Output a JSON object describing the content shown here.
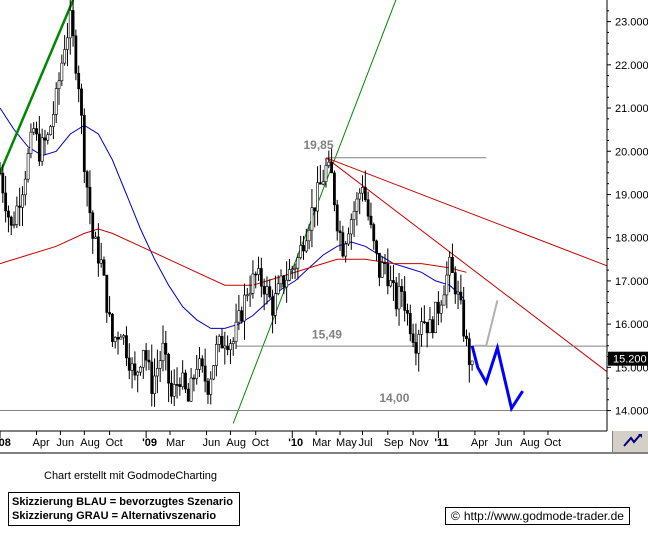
{
  "chart_data": {
    "type": "candlestick",
    "y_axis": {
      "ticks": [
        "23.000",
        "22.000",
        "21.000",
        "20.000",
        "19.000",
        "18.000",
        "17.000",
        "16.000",
        "15.000",
        "14.000"
      ],
      "range": [
        13.55,
        23.5
      ],
      "current_price_label": "15.200"
    },
    "x_axis": {
      "ticks": [
        "'08",
        "Apr",
        "Jun",
        "Aug",
        "Oct",
        "'09",
        "Mar",
        "Jun",
        "Aug",
        "Oct",
        "'10",
        "Mar",
        "May",
        "Jul",
        "Sep",
        "Nov",
        "'11",
        "Apr",
        "Jun",
        "Aug",
        "Oct"
      ],
      "range_weeks": [
        0,
        216
      ]
    },
    "price_series": [
      [
        0,
        19.5
      ],
      [
        4,
        18.2
      ],
      [
        8,
        19.2
      ],
      [
        12,
        20.5
      ],
      [
        14,
        20.0
      ],
      [
        17,
        20.3
      ],
      [
        20,
        21.2
      ],
      [
        23,
        22.5
      ],
      [
        25,
        23.0
      ],
      [
        28,
        21.6
      ],
      [
        30,
        19.8
      ],
      [
        33,
        18.0
      ],
      [
        36,
        17.4
      ],
      [
        38,
        16.5
      ],
      [
        40,
        15.6
      ],
      [
        43,
        15.9
      ],
      [
        46,
        15.2
      ],
      [
        48,
        14.7
      ],
      [
        51,
        15.5
      ],
      [
        54,
        14.6
      ],
      [
        58,
        15.4
      ],
      [
        61,
        14.3
      ],
      [
        64,
        14.8
      ],
      [
        67,
        14.2
      ],
      [
        70,
        15.1
      ],
      [
        74,
        14.6
      ],
      [
        77,
        15.4
      ],
      [
        80,
        15.7
      ],
      [
        83,
        15.6
      ],
      [
        86,
        16.3
      ],
      [
        88,
        16.8
      ],
      [
        91,
        17.1
      ],
      [
        94,
        16.9
      ],
      [
        97,
        16.4
      ],
      [
        100,
        16.9
      ],
      [
        103,
        17.2
      ],
      [
        106,
        17.5
      ],
      [
        109,
        18.2
      ],
      [
        112,
        18.8
      ],
      [
        114,
        19.2
      ],
      [
        116,
        19.6
      ],
      [
        118,
        19.4
      ],
      [
        120,
        18.4
      ],
      [
        122,
        17.8
      ],
      [
        124,
        18.3
      ],
      [
        127,
        18.8
      ],
      [
        129,
        19.3
      ],
      [
        131,
        18.5
      ],
      [
        133,
        17.8
      ],
      [
        135,
        17.2
      ],
      [
        137,
        17.4
      ],
      [
        139,
        16.9
      ],
      [
        141,
        16.5
      ],
      [
        143,
        16.8
      ],
      [
        145,
        16.2
      ],
      [
        148,
        15.6
      ],
      [
        150,
        16.2
      ],
      [
        153,
        15.9
      ],
      [
        156,
        16.4
      ],
      [
        158,
        16.9
      ],
      [
        160,
        17.3
      ],
      [
        162,
        16.9
      ],
      [
        164,
        16.3
      ],
      [
        166,
        15.5
      ],
      [
        167,
        15.2
      ],
      [
        168,
        14.9
      ]
    ],
    "overlays": [
      {
        "type": "moving_average",
        "color": "#0000cc",
        "points": [
          [
            0,
            21.0
          ],
          [
            5,
            20.5
          ],
          [
            10,
            20.1
          ],
          [
            15,
            19.9
          ],
          [
            20,
            20.0
          ],
          [
            25,
            20.4
          ],
          [
            30,
            20.6
          ],
          [
            35,
            20.4
          ],
          [
            40,
            19.8
          ],
          [
            45,
            19.0
          ],
          [
            50,
            18.2
          ],
          [
            55,
            17.5
          ],
          [
            60,
            16.9
          ],
          [
            65,
            16.4
          ],
          [
            70,
            16.1
          ],
          [
            75,
            15.9
          ],
          [
            80,
            15.9
          ],
          [
            85,
            16.0
          ],
          [
            90,
            16.2
          ],
          [
            95,
            16.5
          ],
          [
            100,
            16.8
          ],
          [
            105,
            17.0
          ],
          [
            110,
            17.3
          ],
          [
            115,
            17.6
          ],
          [
            120,
            17.8
          ],
          [
            125,
            17.9
          ],
          [
            130,
            17.8
          ],
          [
            135,
            17.6
          ],
          [
            140,
            17.4
          ],
          [
            145,
            17.3
          ],
          [
            150,
            17.2
          ],
          [
            155,
            17.0
          ],
          [
            160,
            16.9
          ],
          [
            165,
            16.6
          ]
        ]
      },
      {
        "type": "moving_average",
        "color": "#cc0000",
        "points": [
          [
            0,
            17.4
          ],
          [
            10,
            17.6
          ],
          [
            20,
            17.8
          ],
          [
            30,
            18.1
          ],
          [
            35,
            18.2
          ],
          [
            40,
            18.1
          ],
          [
            50,
            17.8
          ],
          [
            60,
            17.5
          ],
          [
            70,
            17.2
          ],
          [
            80,
            16.9
          ],
          [
            90,
            16.9
          ],
          [
            100,
            17.1
          ],
          [
            110,
            17.3
          ],
          [
            120,
            17.5
          ],
          [
            125,
            17.5
          ],
          [
            130,
            17.5
          ],
          [
            140,
            17.4
          ],
          [
            150,
            17.4
          ],
          [
            160,
            17.3
          ],
          [
            166,
            17.2
          ]
        ]
      },
      {
        "type": "trendline",
        "color": "#008800",
        "points": [
          [
            0,
            19.5
          ],
          [
            26,
            23.5
          ]
        ],
        "width": 2.5
      },
      {
        "type": "trendline",
        "color": "#008800",
        "points": [
          [
            83,
            13.7
          ],
          [
            145,
            24.2
          ]
        ],
        "width": 1
      },
      {
        "type": "trendline",
        "color": "#cc0000",
        "points": [
          [
            116,
            19.85
          ],
          [
            216,
            17.35
          ]
        ],
        "width": 1
      },
      {
        "type": "trendline",
        "color": "#cc0000",
        "points": [
          [
            116,
            19.85
          ],
          [
            216,
            14.9
          ]
        ],
        "width": 1
      },
      {
        "type": "horizontal_line",
        "color": "#808080",
        "y": 19.85,
        "x_range": [
          116,
          173
        ]
      },
      {
        "type": "horizontal_line",
        "color": "#808080",
        "y": 15.49,
        "x_range": [
          84,
          216
        ]
      },
      {
        "type": "horizontal_line",
        "color": "#808080",
        "y": 14.0,
        "x_range": [
          0,
          216
        ]
      }
    ],
    "scenarios": [
      {
        "name": "Skizzierung BLAU = bevorzugtes Szenario",
        "color": "#0000ff",
        "points": [
          [
            168,
            15.5
          ],
          [
            170,
            15.0
          ],
          [
            173,
            14.65
          ],
          [
            177,
            15.45
          ],
          [
            182,
            14.05
          ],
          [
            186,
            14.45
          ]
        ]
      },
      {
        "name": "Skizzierung GRAU = Alternativszenario",
        "color": "#b0b0b0",
        "points": [
          [
            169,
            15.5
          ],
          [
            173,
            15.5
          ],
          [
            177,
            16.55
          ]
        ]
      }
    ],
    "annotations": [
      {
        "text": "19,85",
        "x": 108,
        "y": 20.05
      },
      {
        "text": "15,49",
        "x": 111,
        "y": 15.67
      },
      {
        "text": "14,00",
        "x": 135,
        "y": 14.2
      }
    ]
  },
  "footer": {
    "credit": "Chart erstellt mit GodmodeCharting",
    "legend_blue": "Skizzierung BLAU = bevorzugtes Szenario",
    "legend_grey": "Skizzierung GRAU = Alternativszenario",
    "copyright_symbol": "©",
    "url": "http://www.godmode-trader.de"
  },
  "colors": {
    "ma_blue": "#0000cc",
    "ma_red": "#cc0000",
    "trend_green": "#008800",
    "scenario_blue": "#0000ff",
    "scenario_grey": "#b0b0b0"
  },
  "icons": [
    "arrow-icon"
  ]
}
